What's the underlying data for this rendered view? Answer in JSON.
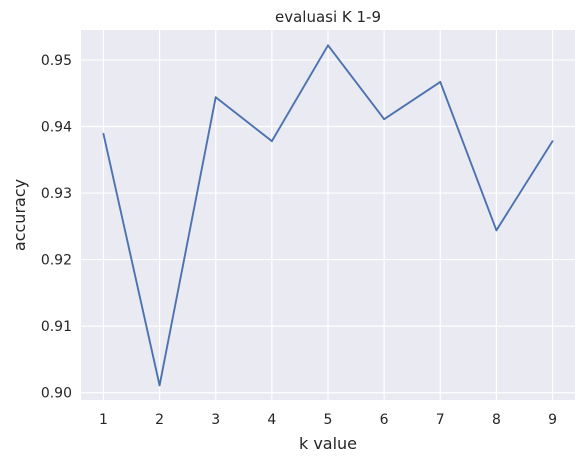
{
  "chart_data": {
    "type": "line",
    "title": "evaluasi K 1-9",
    "xlabel": "k value",
    "ylabel": "accuracy",
    "x": [
      1,
      2,
      3,
      4,
      5,
      6,
      7,
      8,
      9
    ],
    "series": [
      {
        "values": [
          0.9389,
          0.9011,
          0.9444,
          0.9378,
          0.9522,
          0.9411,
          0.9467,
          0.9244,
          0.9378
        ]
      }
    ],
    "xticks": [
      "1",
      "2",
      "3",
      "4",
      "5",
      "6",
      "7",
      "8",
      "9"
    ],
    "yticks": [
      "0.90",
      "0.91",
      "0.92",
      "0.93",
      "0.94",
      "0.95"
    ],
    "xlim": [
      0.6,
      9.4
    ],
    "ylim": [
      0.8989,
      0.9545
    ],
    "grid": true,
    "colors": {
      "background": "#eaeaf2",
      "grid": "#ffffff",
      "line": "#4c72b0"
    }
  }
}
